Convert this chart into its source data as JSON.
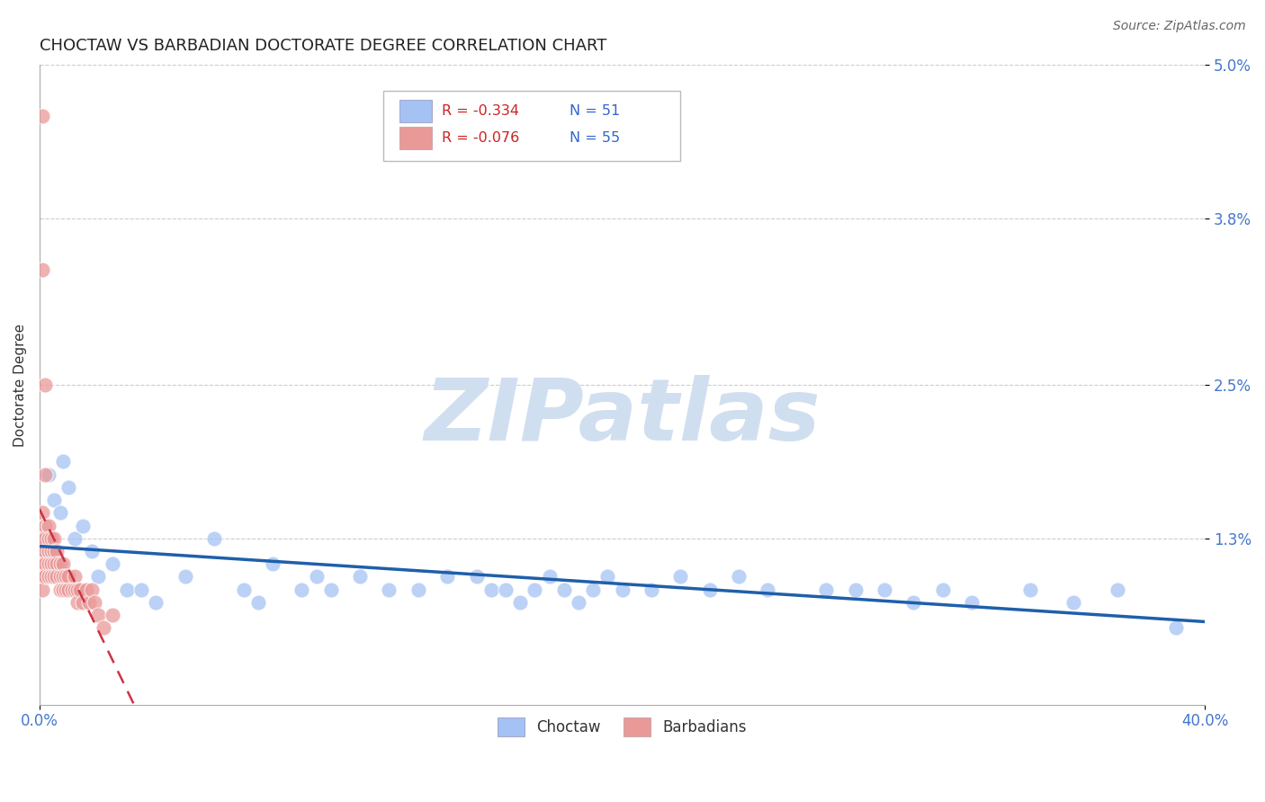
{
  "title": "CHOCTAW VS BARBADIAN DOCTORATE DEGREE CORRELATION CHART",
  "source": "Source: ZipAtlas.com",
  "ylabel": "Doctorate Degree",
  "xlim": [
    0.0,
    0.4
  ],
  "ylim": [
    0.0,
    0.05
  ],
  "xticks": [
    0.0,
    0.4
  ],
  "xtick_labels": [
    "0.0%",
    "40.0%"
  ],
  "yticks": [
    0.013,
    0.025,
    0.038,
    0.05
  ],
  "ytick_labels": [
    "1.3%",
    "2.5%",
    "3.8%",
    "5.0%"
  ],
  "choctaw_color": "#a4c2f4",
  "barbadian_color": "#ea9999",
  "choctaw_R": -0.334,
  "choctaw_N": 51,
  "barbadian_R": -0.076,
  "barbadian_N": 55,
  "legend_label_1": "Choctaw",
  "legend_label_2": "Barbadians",
  "choctaw_x": [
    0.003,
    0.005,
    0.007,
    0.008,
    0.01,
    0.012,
    0.015,
    0.018,
    0.02,
    0.025,
    0.03,
    0.035,
    0.04,
    0.05,
    0.06,
    0.07,
    0.075,
    0.08,
    0.09,
    0.095,
    0.1,
    0.11,
    0.12,
    0.13,
    0.14,
    0.15,
    0.155,
    0.16,
    0.165,
    0.17,
    0.175,
    0.18,
    0.185,
    0.19,
    0.195,
    0.2,
    0.21,
    0.22,
    0.23,
    0.24,
    0.25,
    0.27,
    0.28,
    0.29,
    0.3,
    0.31,
    0.32,
    0.34,
    0.355,
    0.37,
    0.39
  ],
  "choctaw_y": [
    0.018,
    0.016,
    0.015,
    0.019,
    0.017,
    0.013,
    0.014,
    0.012,
    0.01,
    0.011,
    0.009,
    0.009,
    0.008,
    0.01,
    0.013,
    0.009,
    0.008,
    0.011,
    0.009,
    0.01,
    0.009,
    0.01,
    0.009,
    0.009,
    0.01,
    0.01,
    0.009,
    0.009,
    0.008,
    0.009,
    0.01,
    0.009,
    0.008,
    0.009,
    0.01,
    0.009,
    0.009,
    0.01,
    0.009,
    0.01,
    0.009,
    0.009,
    0.009,
    0.009,
    0.008,
    0.009,
    0.008,
    0.009,
    0.008,
    0.009,
    0.006
  ],
  "barbadian_x": [
    0.001,
    0.001,
    0.001,
    0.001,
    0.001,
    0.001,
    0.001,
    0.001,
    0.002,
    0.002,
    0.002,
    0.002,
    0.002,
    0.002,
    0.002,
    0.003,
    0.003,
    0.003,
    0.003,
    0.003,
    0.004,
    0.004,
    0.004,
    0.004,
    0.005,
    0.005,
    0.005,
    0.005,
    0.006,
    0.006,
    0.006,
    0.007,
    0.007,
    0.007,
    0.008,
    0.008,
    0.008,
    0.009,
    0.009,
    0.01,
    0.01,
    0.011,
    0.012,
    0.012,
    0.013,
    0.013,
    0.014,
    0.015,
    0.016,
    0.017,
    0.018,
    0.019,
    0.02,
    0.022,
    0.025
  ],
  "barbadian_y": [
    0.046,
    0.034,
    0.015,
    0.013,
    0.012,
    0.011,
    0.01,
    0.009,
    0.025,
    0.018,
    0.014,
    0.013,
    0.012,
    0.011,
    0.01,
    0.014,
    0.013,
    0.012,
    0.011,
    0.01,
    0.013,
    0.012,
    0.011,
    0.01,
    0.013,
    0.012,
    0.011,
    0.01,
    0.012,
    0.011,
    0.01,
    0.011,
    0.01,
    0.009,
    0.011,
    0.01,
    0.009,
    0.01,
    0.009,
    0.01,
    0.009,
    0.009,
    0.01,
    0.009,
    0.009,
    0.008,
    0.009,
    0.008,
    0.009,
    0.008,
    0.009,
    0.008,
    0.007,
    0.006,
    0.007
  ],
  "grid_color": "#cccccc",
  "watermark_color": "#d0dff0",
  "title_fontsize": 13,
  "axis_label_fontsize": 11,
  "tick_fontsize": 12,
  "legend_fontsize": 12,
  "source_fontsize": 10
}
